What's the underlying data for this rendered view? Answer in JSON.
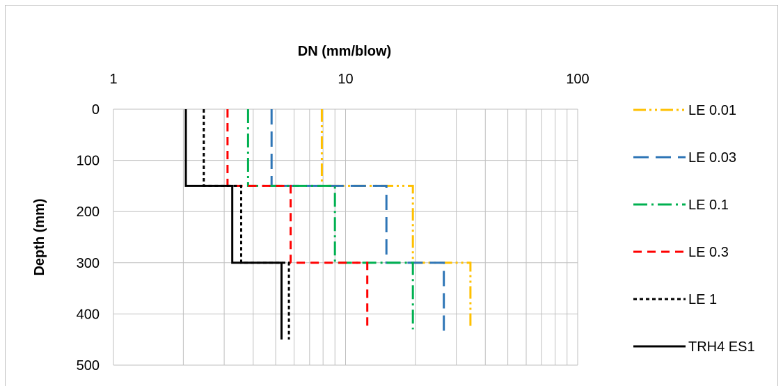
{
  "chart_data": {
    "type": "line",
    "title": "",
    "xlabel": "DN (mm/blow)",
    "ylabel": "Depth (mm)",
    "x_scale": "log",
    "xlim": [
      1,
      100
    ],
    "ylim": [
      0,
      500
    ],
    "y_inverted": true,
    "x_axis_position": "top",
    "grid": true,
    "legend_position": "right",
    "x_ticks": [
      {
        "value": 1,
        "label": "1"
      },
      {
        "value": 10,
        "label": "10"
      },
      {
        "value": 100,
        "label": "100"
      }
    ],
    "y_ticks": [
      {
        "value": 0,
        "label": "0"
      },
      {
        "value": 100,
        "label": "100"
      },
      {
        "value": 200,
        "label": "200"
      },
      {
        "value": 300,
        "label": "300"
      },
      {
        "value": 400,
        "label": "400"
      },
      {
        "value": 500,
        "label": "500"
      }
    ],
    "series": [
      {
        "name": "LE 0.01",
        "color": "#FFC000",
        "dash": "dash-dot-dot",
        "points": [
          [
            7.9,
            0
          ],
          [
            7.9,
            150
          ],
          [
            19.5,
            150
          ],
          [
            19.5,
            300
          ],
          [
            34.5,
            300
          ],
          [
            34.5,
            430
          ]
        ]
      },
      {
        "name": "LE 0.03",
        "color": "#2E75B6",
        "dash": "long-dash",
        "points": [
          [
            4.8,
            0
          ],
          [
            4.8,
            150
          ],
          [
            15.0,
            150
          ],
          [
            15.0,
            300
          ],
          [
            26.5,
            300
          ],
          [
            26.5,
            440
          ]
        ]
      },
      {
        "name": "LE 0.1",
        "color": "#00B050",
        "dash": "long-dash-dot",
        "points": [
          [
            3.8,
            0
          ],
          [
            3.8,
            150
          ],
          [
            9.0,
            150
          ],
          [
            9.0,
            300
          ],
          [
            19.5,
            300
          ],
          [
            19.5,
            430
          ]
        ]
      },
      {
        "name": "LE 0.3",
        "color": "#FF0000",
        "dash": "dash",
        "points": [
          [
            3.1,
            0
          ],
          [
            3.1,
            150
          ],
          [
            5.8,
            150
          ],
          [
            5.8,
            300
          ],
          [
            12.4,
            300
          ],
          [
            12.4,
            430
          ]
        ]
      },
      {
        "name": "LE 1",
        "color": "#000000",
        "dash": "short-dash",
        "points": [
          [
            2.45,
            0
          ],
          [
            2.45,
            150
          ],
          [
            3.55,
            150
          ],
          [
            3.55,
            300
          ],
          [
            5.7,
            300
          ],
          [
            5.7,
            450
          ]
        ]
      },
      {
        "name": "TRH4 ES1",
        "color": "#000000",
        "dash": "solid",
        "points": [
          [
            2.05,
            0
          ],
          [
            2.05,
            150
          ],
          [
            3.25,
            150
          ],
          [
            3.25,
            300
          ],
          [
            5.3,
            300
          ],
          [
            5.3,
            450
          ]
        ]
      }
    ]
  }
}
